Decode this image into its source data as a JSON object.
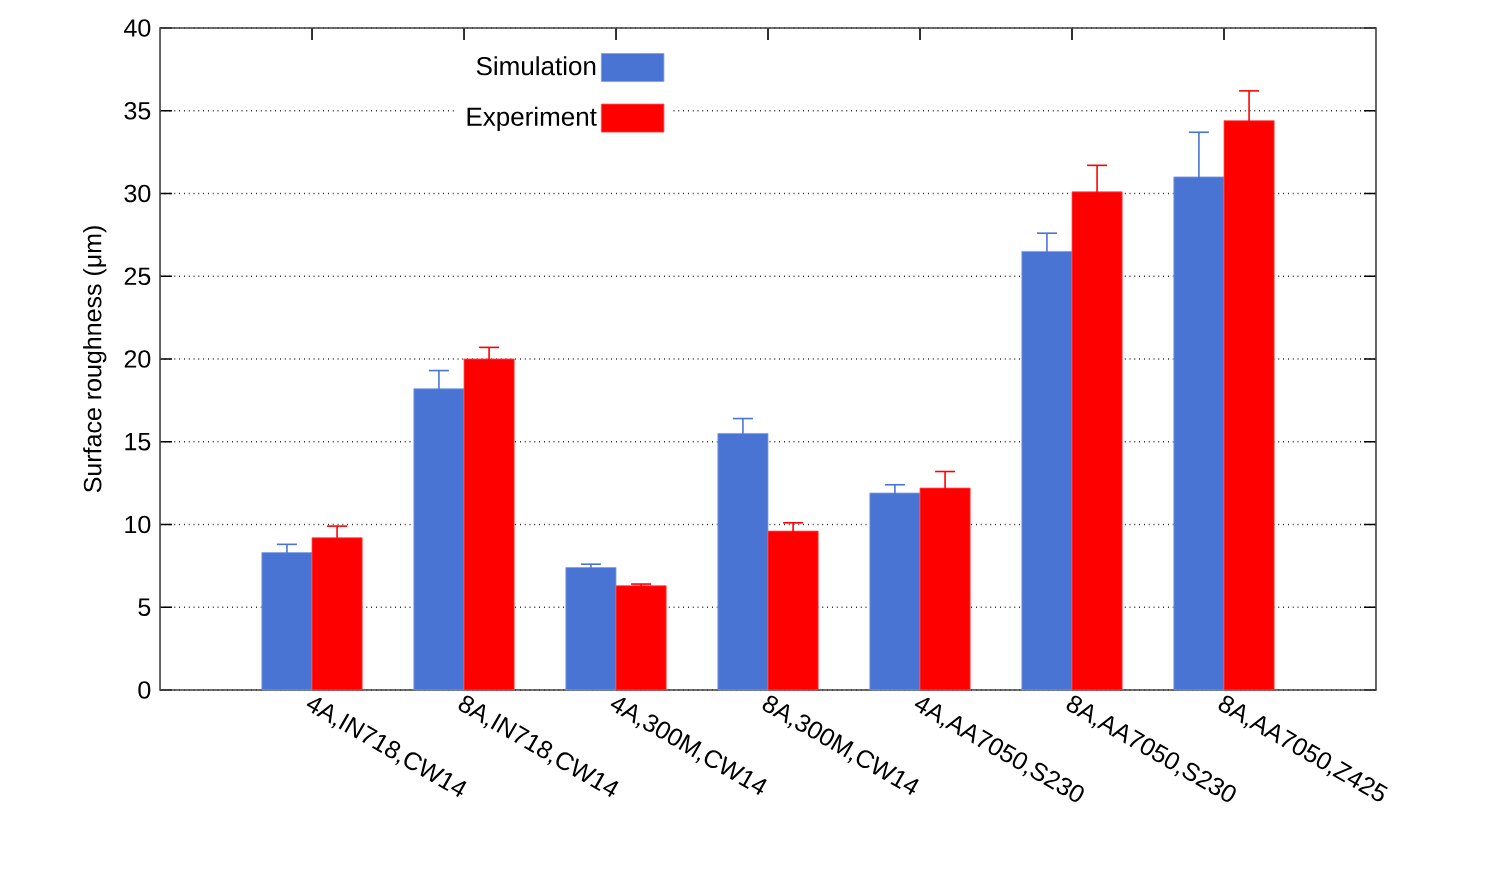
{
  "chart_data": {
    "type": "bar",
    "ylabel": "Surface roughness (μm)",
    "categories": [
      "4A,IN718,CW14",
      "8A,IN718,CW14",
      "4A,300M,CW14",
      "8A,300M,CW14",
      "4A,AA7050,S230",
      "8A,AA7050,S230",
      "8A,AA7050,Z425"
    ],
    "series": [
      {
        "name": "Simulation",
        "color": "#4a74d4",
        "values": [
          8.3,
          18.2,
          7.4,
          15.5,
          11.9,
          26.5,
          31.0
        ],
        "errors": [
          0.5,
          1.1,
          0.2,
          0.9,
          0.5,
          1.1,
          2.7
        ]
      },
      {
        "name": "Experiment",
        "color": "#ff0000",
        "values": [
          9.2,
          20.0,
          6.3,
          9.6,
          12.2,
          30.1,
          34.4
        ],
        "errors": [
          0.7,
          0.7,
          0.1,
          0.5,
          1.0,
          1.6,
          1.8
        ]
      }
    ],
    "ylim": [
      0,
      40
    ],
    "yticks": [
      0,
      5,
      10,
      15,
      20,
      25,
      30,
      35,
      40
    ],
    "grid": "y",
    "legend": "top left"
  }
}
